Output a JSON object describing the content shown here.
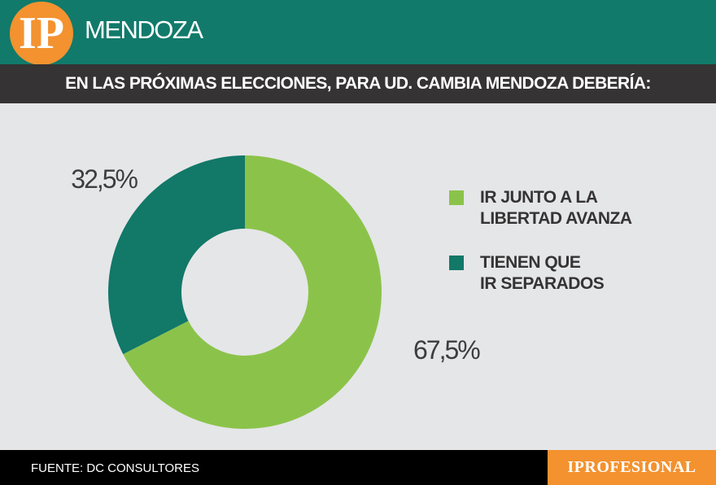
{
  "header": {
    "logo_text": "IP",
    "region": "MENDOZA",
    "question": "EN LAS PRÓXIMAS ELECCIONES, PARA UD. CAMBIA MENDOZA DEBERÍA:"
  },
  "colors": {
    "brand_teal": "#117a6b",
    "brand_orange": "#f3922f",
    "light_green": "#8bc34a",
    "dark_teal": "#127868"
  },
  "chart_data": {
    "type": "pie",
    "style": "donut",
    "categories": [
      "IR JUNTO A LA\nLIBERTAD AVANZA",
      "TIENEN QUE\nIR SEPARADOS"
    ],
    "values": [
      67.5,
      32.5
    ],
    "labels": [
      "67,5%",
      "32,5%"
    ],
    "colors": [
      "#8bc34a",
      "#127868"
    ],
    "legend_position": "right"
  },
  "footer": {
    "source": "FUENTE: DC CONSULTORES",
    "brand": "IPROFESIONAL"
  }
}
